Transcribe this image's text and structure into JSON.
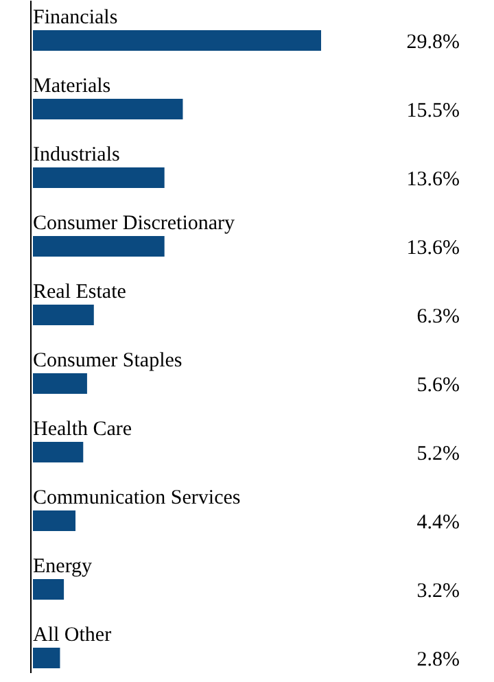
{
  "chart_data": {
    "type": "bar",
    "orientation": "horizontal",
    "categories": [
      "Financials",
      "Materials",
      "Industrials",
      "Consumer Discretionary",
      "Real Estate",
      "Consumer Staples",
      "Health Care",
      "Communication Services",
      "Energy",
      "All Other"
    ],
    "values": [
      29.8,
      15.5,
      13.6,
      13.6,
      6.3,
      5.6,
      5.2,
      4.4,
      3.2,
      2.8
    ],
    "value_labels": [
      "29.8%",
      "15.5%",
      "13.6%",
      "13.6%",
      "6.3%",
      "5.6%",
      "5.2%",
      "4.4%",
      "3.2%",
      "2.8%"
    ],
    "color": "#0b4a80"
  }
}
